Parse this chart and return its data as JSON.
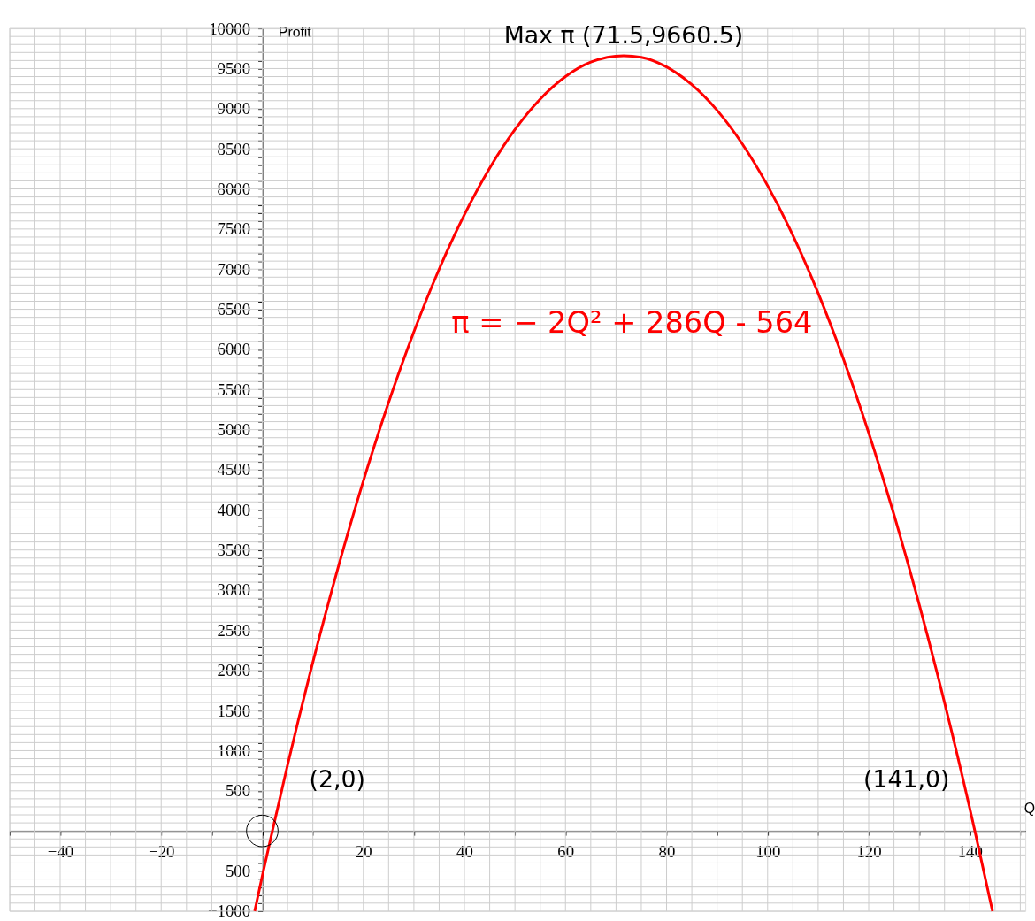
{
  "chart_data": {
    "type": "line",
    "xlabel": "Q",
    "ylabel": "Profit",
    "xlim": [
      -50,
      151
    ],
    "ylim": [
      -1000,
      10000
    ],
    "xticks": [
      {
        "value": -50,
        "label": null
      },
      {
        "value": -45,
        "label": null
      },
      {
        "value": -40,
        "label": "−40"
      },
      {
        "value": -35,
        "label": null
      },
      {
        "value": -30,
        "label": null
      },
      {
        "value": -25,
        "label": null
      },
      {
        "value": -20,
        "label": "−20"
      },
      {
        "value": -15,
        "label": null
      },
      {
        "value": -10,
        "label": null
      },
      {
        "value": -5,
        "label": null
      },
      {
        "value": 0,
        "label": null
      },
      {
        "value": 5,
        "label": null
      },
      {
        "value": 10,
        "label": null
      },
      {
        "value": 15,
        "label": null
      },
      20,
      {
        "value": 25,
        "label": null
      },
      {
        "value": 30,
        "label": null
      },
      {
        "value": 35,
        "label": null
      },
      40,
      {
        "value": 45,
        "label": null
      },
      {
        "value": 50,
        "label": null
      },
      {
        "value": 55,
        "label": null
      },
      60,
      {
        "value": 65,
        "label": null
      },
      {
        "value": 70,
        "label": null
      },
      {
        "value": 75,
        "label": null
      },
      80,
      {
        "value": 85,
        "label": null
      },
      {
        "value": 90,
        "label": null
      },
      {
        "value": 95,
        "label": null
      },
      100,
      {
        "value": 105,
        "label": null
      },
      {
        "value": 110,
        "label": null
      },
      {
        "value": 115,
        "label": null
      },
      120,
      {
        "value": 125,
        "label": null
      },
      {
        "value": 130,
        "label": null
      },
      {
        "value": 135,
        "label": null
      },
      140,
      {
        "value": 145,
        "label": null
      },
      {
        "value": 150,
        "label": null
      }
    ],
    "yticks": [
      {
        "value": -1000,
        "label": "−1000"
      },
      {
        "value": -900,
        "label": null
      },
      {
        "value": -800,
        "label": null
      },
      {
        "value": -700,
        "label": null
      },
      {
        "value": -600,
        "label": null
      },
      {
        "value": -500,
        "label": "−500"
      },
      {
        "value": -400,
        "label": null
      },
      {
        "value": -300,
        "label": null
      },
      {
        "value": -200,
        "label": null
      },
      {
        "value": -100,
        "label": null
      },
      {
        "value": 0,
        "label": null
      },
      {
        "value": 100,
        "label": null
      },
      {
        "value": 200,
        "label": null
      },
      {
        "value": 300,
        "label": null
      },
      {
        "value": 400,
        "label": null
      },
      500,
      {
        "value": 600,
        "label": null
      },
      {
        "value": 700,
        "label": null
      },
      {
        "value": 800,
        "label": null
      },
      {
        "value": 900,
        "label": null
      },
      1000,
      {
        "value": 1100,
        "label": null
      },
      {
        "value": 1200,
        "label": null
      },
      {
        "value": 1300,
        "label": null
      },
      {
        "value": 1400,
        "label": null
      },
      1500,
      {
        "value": 1600,
        "label": null
      },
      {
        "value": 1700,
        "label": null
      },
      {
        "value": 1800,
        "label": null
      },
      {
        "value": 1900,
        "label": null
      },
      2000,
      {
        "value": 2100,
        "label": null
      },
      {
        "value": 2200,
        "label": null
      },
      {
        "value": 2300,
        "label": null
      },
      {
        "value": 2400,
        "label": null
      },
      2500,
      {
        "value": 2600,
        "label": null
      },
      {
        "value": 2700,
        "label": null
      },
      {
        "value": 2800,
        "label": null
      },
      {
        "value": 2900,
        "label": null
      },
      3000,
      {
        "value": 3100,
        "label": null
      },
      {
        "value": 3200,
        "label": null
      },
      {
        "value": 3300,
        "label": null
      },
      {
        "value": 3400,
        "label": null
      },
      3500,
      {
        "value": 3600,
        "label": null
      },
      {
        "value": 3700,
        "label": null
      },
      {
        "value": 3800,
        "label": null
      },
      {
        "value": 3900,
        "label": null
      },
      4000,
      {
        "value": 4100,
        "label": null
      },
      {
        "value": 4200,
        "label": null
      },
      {
        "value": 4300,
        "label": null
      },
      {
        "value": 4400,
        "label": null
      },
      4500,
      {
        "value": 4600,
        "label": null
      },
      {
        "value": 4700,
        "label": null
      },
      {
        "value": 4800,
        "label": null
      },
      {
        "value": 4900,
        "label": null
      },
      5000,
      {
        "value": 5100,
        "label": null
      },
      {
        "value": 5200,
        "label": null
      },
      {
        "value": 5300,
        "label": null
      },
      {
        "value": 5400,
        "label": null
      },
      5500,
      {
        "value": 5600,
        "label": null
      },
      {
        "value": 5700,
        "label": null
      },
      {
        "value": 5800,
        "label": null
      },
      {
        "value": 5900,
        "label": null
      },
      6000,
      {
        "value": 6100,
        "label": null
      },
      {
        "value": 6200,
        "label": null
      },
      {
        "value": 6300,
        "label": null
      },
      {
        "value": 6400,
        "label": null
      },
      6500,
      {
        "value": 6600,
        "label": null
      },
      {
        "value": 6700,
        "label": null
      },
      {
        "value": 6800,
        "label": null
      },
      {
        "value": 6900,
        "label": null
      },
      7000,
      {
        "value": 7100,
        "label": null
      },
      {
        "value": 7200,
        "label": null
      },
      {
        "value": 7300,
        "label": null
      },
      {
        "value": 7400,
        "label": null
      },
      7500,
      {
        "value": 7600,
        "label": null
      },
      {
        "value": 7700,
        "label": null
      },
      {
        "value": 7800,
        "label": null
      },
      {
        "value": 7900,
        "label": null
      },
      8000,
      {
        "value": 8100,
        "label": null
      },
      {
        "value": 8200,
        "label": null
      },
      {
        "value": 8300,
        "label": null
      },
      {
        "value": 8400,
        "label": null
      },
      8500,
      {
        "value": 8600,
        "label": null
      },
      {
        "value": 8700,
        "label": null
      },
      {
        "value": 8800,
        "label": null
      },
      {
        "value": 8900,
        "label": null
      },
      9000,
      {
        "value": 9100,
        "label": null
      },
      {
        "value": 9200,
        "label": null
      },
      {
        "value": 9300,
        "label": null
      },
      {
        "value": 9400,
        "label": null
      },
      9500,
      {
        "value": 9600,
        "label": null
      },
      {
        "value": 9700,
        "label": null
      },
      {
        "value": 9800,
        "label": null
      },
      {
        "value": 9900,
        "label": null
      },
      10000
    ],
    "grid": true,
    "series": [
      {
        "name": "π = − 2Q² + 286Q - 564",
        "color": "#ff0000",
        "type": "line",
        "line_style": "solid",
        "marker": "none",
        "x": [
          -1.5,
          0,
          2,
          5,
          10,
          15,
          20,
          25,
          30,
          35,
          40,
          45,
          50,
          55,
          60,
          65,
          71.5,
          75,
          80,
          85,
          90,
          95,
          100,
          105,
          110,
          115,
          120,
          125,
          130,
          135,
          140,
          141,
          144.5
        ],
        "values": [
          -1000,
          -560,
          0,
          820,
          2100,
          3280,
          4360,
          5340,
          6220,
          7000,
          7680,
          8260,
          8740,
          9120,
          9400,
          9580,
          9660.5,
          9640,
          9520,
          9300,
          8980,
          8560,
          8040,
          7420,
          6700,
          5880,
          4960,
          3940,
          2820,
          1600,
          280,
          0,
          -1000
        ]
      },
      {
        "color": "#000000",
        "type": "scatter",
        "marker": "circle",
        "x": [
          0
        ],
        "values": [
          0
        ]
      }
    ],
    "annotations": [
      {
        "text": "Max π (71.5,9660.5)",
        "x": 71.5,
        "y": 9660.5
      },
      {
        "text": "(2,0)",
        "x": 2,
        "y": 0
      },
      {
        "text": "(141,0)",
        "x": 141,
        "y": 0
      }
    ]
  }
}
